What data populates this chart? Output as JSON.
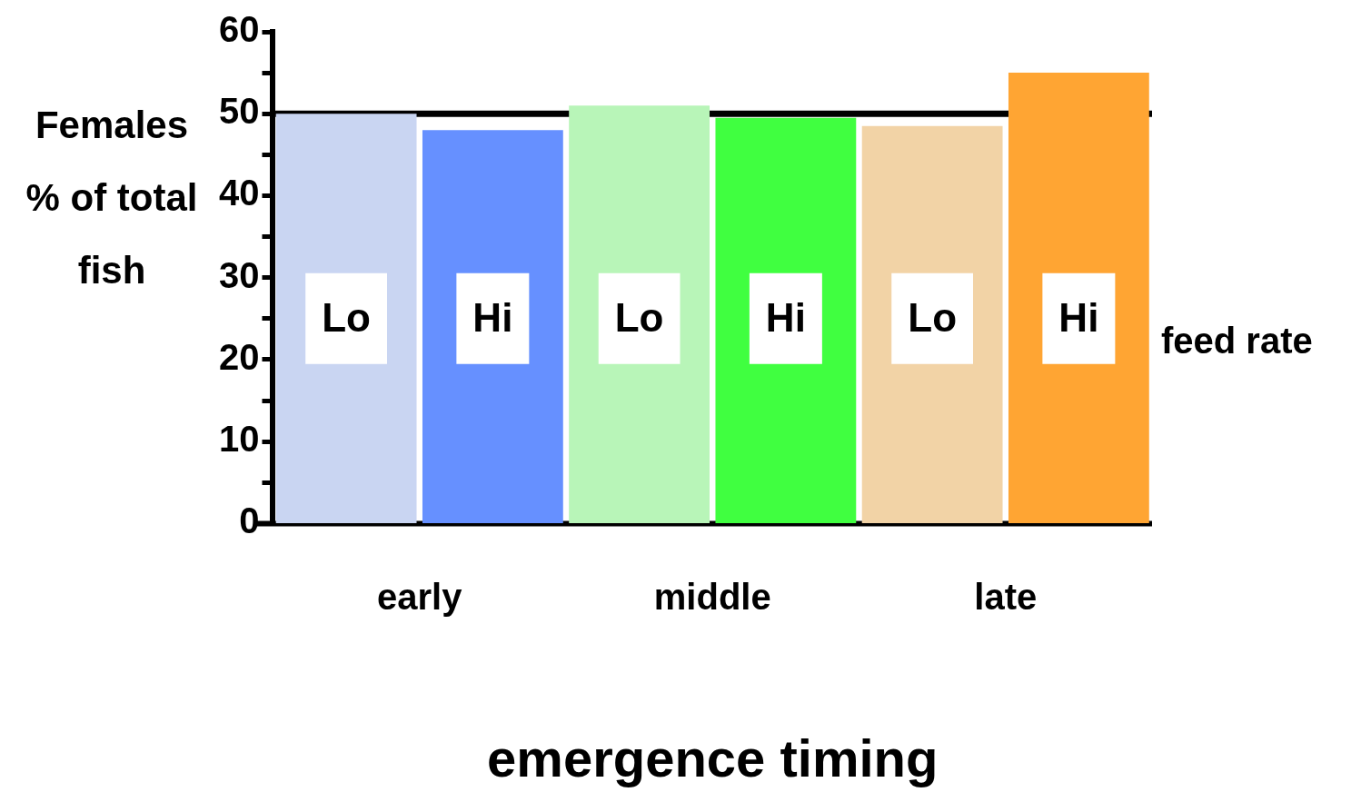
{
  "chart_data": {
    "type": "bar",
    "categories": [
      "early",
      "middle",
      "late"
    ],
    "series": [
      {
        "name": "Lo",
        "colors": [
          "#c9d5f2",
          "#b8f5b8",
          "#f2d3a6"
        ],
        "values": [
          50,
          51,
          48.5
        ]
      },
      {
        "name": "Hi",
        "colors": [
          "#6690ff",
          "#40ff40",
          "#ffa533"
        ],
        "values": [
          48,
          49.5,
          55
        ]
      }
    ],
    "xlabel": "emergence timing",
    "ylabel": "Females\n% of total fish",
    "legend_title": "feed rate",
    "ylim": [
      0,
      60
    ],
    "yticks": [
      0,
      {
        "value": 5,
        "label": null
      },
      10,
      {
        "value": 15,
        "label": null
      },
      20,
      {
        "value": 25,
        "label": null
      },
      30,
      {
        "value": 35,
        "label": null
      },
      40,
      {
        "value": 45,
        "label": null
      },
      50,
      {
        "value": 55,
        "label": null
      },
      60
    ],
    "ref_lines": [
      {
        "axis": "y",
        "value": 50,
        "label": null,
        "color": "#000000"
      }
    ],
    "grid": false,
    "legend": false
  }
}
